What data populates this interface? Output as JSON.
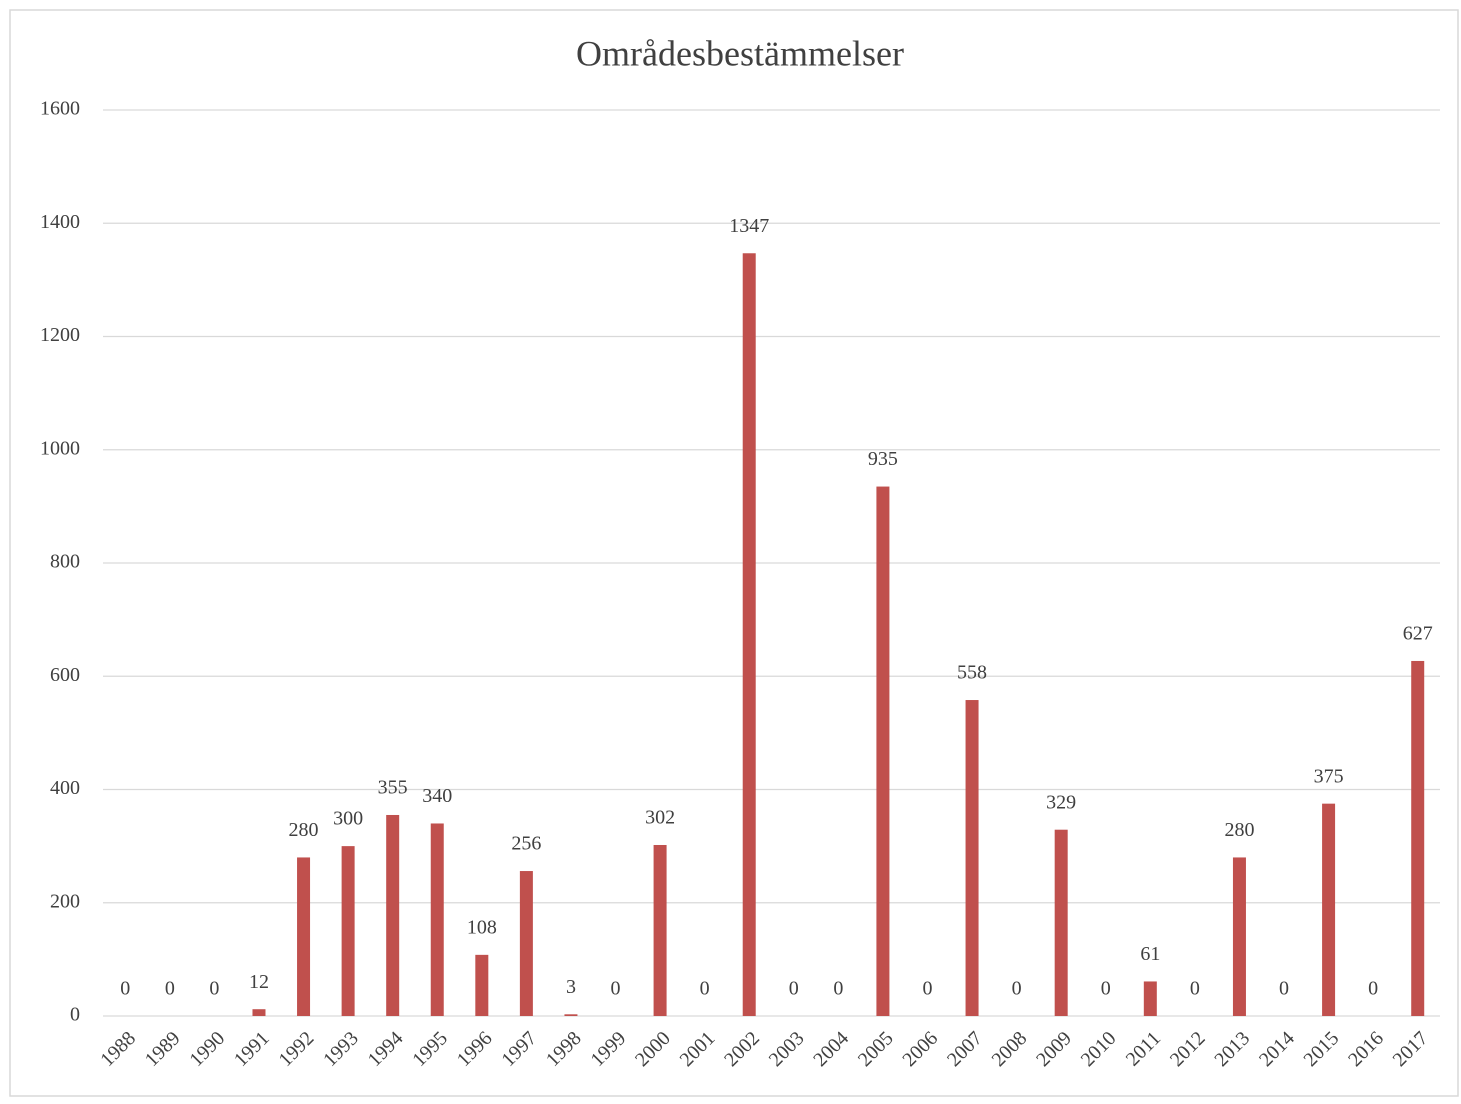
{
  "chart_data": {
    "type": "bar",
    "title": "Områdesbestämmelser",
    "categories": [
      "1988",
      "1989",
      "1990",
      "1991",
      "1992",
      "1993",
      "1994",
      "1995",
      "1996",
      "1997",
      "1998",
      "1999",
      "2000",
      "2001",
      "2002",
      "2003",
      "2004",
      "2005",
      "2006",
      "2007",
      "2008",
      "2009",
      "2010",
      "2011",
      "2012",
      "2013",
      "2014",
      "2015",
      "2016",
      "2017"
    ],
    "values": [
      0,
      0,
      0,
      12,
      280,
      300,
      355,
      340,
      108,
      256,
      3,
      0,
      302,
      0,
      1347,
      0,
      0,
      935,
      0,
      558,
      0,
      329,
      0,
      61,
      0,
      280,
      0,
      375,
      0,
      627
    ],
    "color": "#c0504d",
    "ylim": [
      0,
      1600
    ],
    "yticks": [
      0,
      200,
      400,
      600,
      800,
      1000,
      1200,
      1400,
      1600
    ],
    "grid": true
  }
}
